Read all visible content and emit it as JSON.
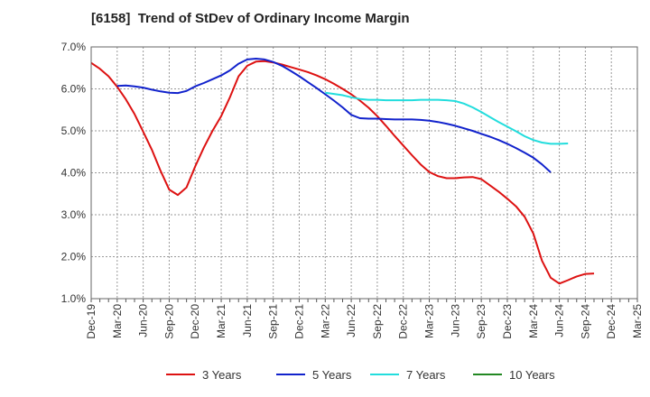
{
  "chart_data": {
    "type": "line",
    "title": "[6158]  Trend of StDev of Ordinary Income Margin",
    "xlabel": "",
    "ylabel": "",
    "ylim": [
      1.0,
      7.0
    ],
    "yticks": [
      "1.0%",
      "2.0%",
      "3.0%",
      "4.0%",
      "5.0%",
      "6.0%",
      "7.0%"
    ],
    "xticks": [
      "Dec-19",
      "Mar-20",
      "Jun-20",
      "Sep-20",
      "Dec-20",
      "Mar-21",
      "Jun-21",
      "Sep-21",
      "Dec-21",
      "Mar-22",
      "Jun-22",
      "Sep-22",
      "Dec-22",
      "Mar-23",
      "Jun-23",
      "Sep-23",
      "Dec-23",
      "Mar-24",
      "Jun-24",
      "Sep-24",
      "Dec-24",
      "Mar-25"
    ],
    "grid": true,
    "legend_position": "bottom",
    "series": [
      {
        "name": "3 Years",
        "color": "#dd1111",
        "start_index": 0,
        "values": [
          6.62,
          6.48,
          6.3,
          6.05,
          5.75,
          5.4,
          4.98,
          4.55,
          4.05,
          3.6,
          3.47,
          3.65,
          4.15,
          4.6,
          5.0,
          5.35,
          5.8,
          6.3,
          6.55,
          6.65,
          6.66,
          6.63,
          6.58,
          6.52,
          6.46,
          6.4,
          6.32,
          6.23,
          6.12,
          6.0,
          5.87,
          5.72,
          5.55,
          5.35,
          5.12,
          4.88,
          4.65,
          4.42,
          4.2,
          4.02,
          3.92,
          3.87,
          3.87,
          3.89,
          3.9,
          3.85,
          3.7,
          3.55,
          3.38,
          3.2,
          2.95,
          2.55,
          1.9,
          1.5,
          1.36,
          1.44,
          1.53,
          1.59,
          1.6
        ]
      },
      {
        "name": "5 Years",
        "color": "#1122cc",
        "start_index": 3,
        "values": [
          6.07,
          6.08,
          6.06,
          6.03,
          5.98,
          5.94,
          5.91,
          5.9,
          5.95,
          6.06,
          6.14,
          6.23,
          6.32,
          6.44,
          6.6,
          6.7,
          6.72,
          6.7,
          6.64,
          6.55,
          6.43,
          6.3,
          6.16,
          6.02,
          5.87,
          5.72,
          5.56,
          5.38,
          5.3,
          5.29,
          5.29,
          5.28,
          5.27,
          5.27,
          5.27,
          5.26,
          5.24,
          5.21,
          5.17,
          5.12,
          5.06,
          5.0,
          4.93,
          4.86,
          4.78,
          4.69,
          4.59,
          4.48,
          4.36,
          4.2,
          4.01
        ]
      },
      {
        "name": "7 Years",
        "color": "#22dddd",
        "start_index": 27,
        "values": [
          5.91,
          5.88,
          5.85,
          5.8,
          5.76,
          5.74,
          5.74,
          5.73,
          5.73,
          5.73,
          5.73,
          5.74,
          5.74,
          5.74,
          5.73,
          5.71,
          5.65,
          5.56,
          5.45,
          5.33,
          5.21,
          5.1,
          4.99,
          4.87,
          4.78,
          4.72,
          4.69,
          4.69,
          4.7
        ]
      },
      {
        "name": "10 Years",
        "color": "#228822",
        "start_index": 0,
        "values": []
      }
    ]
  }
}
